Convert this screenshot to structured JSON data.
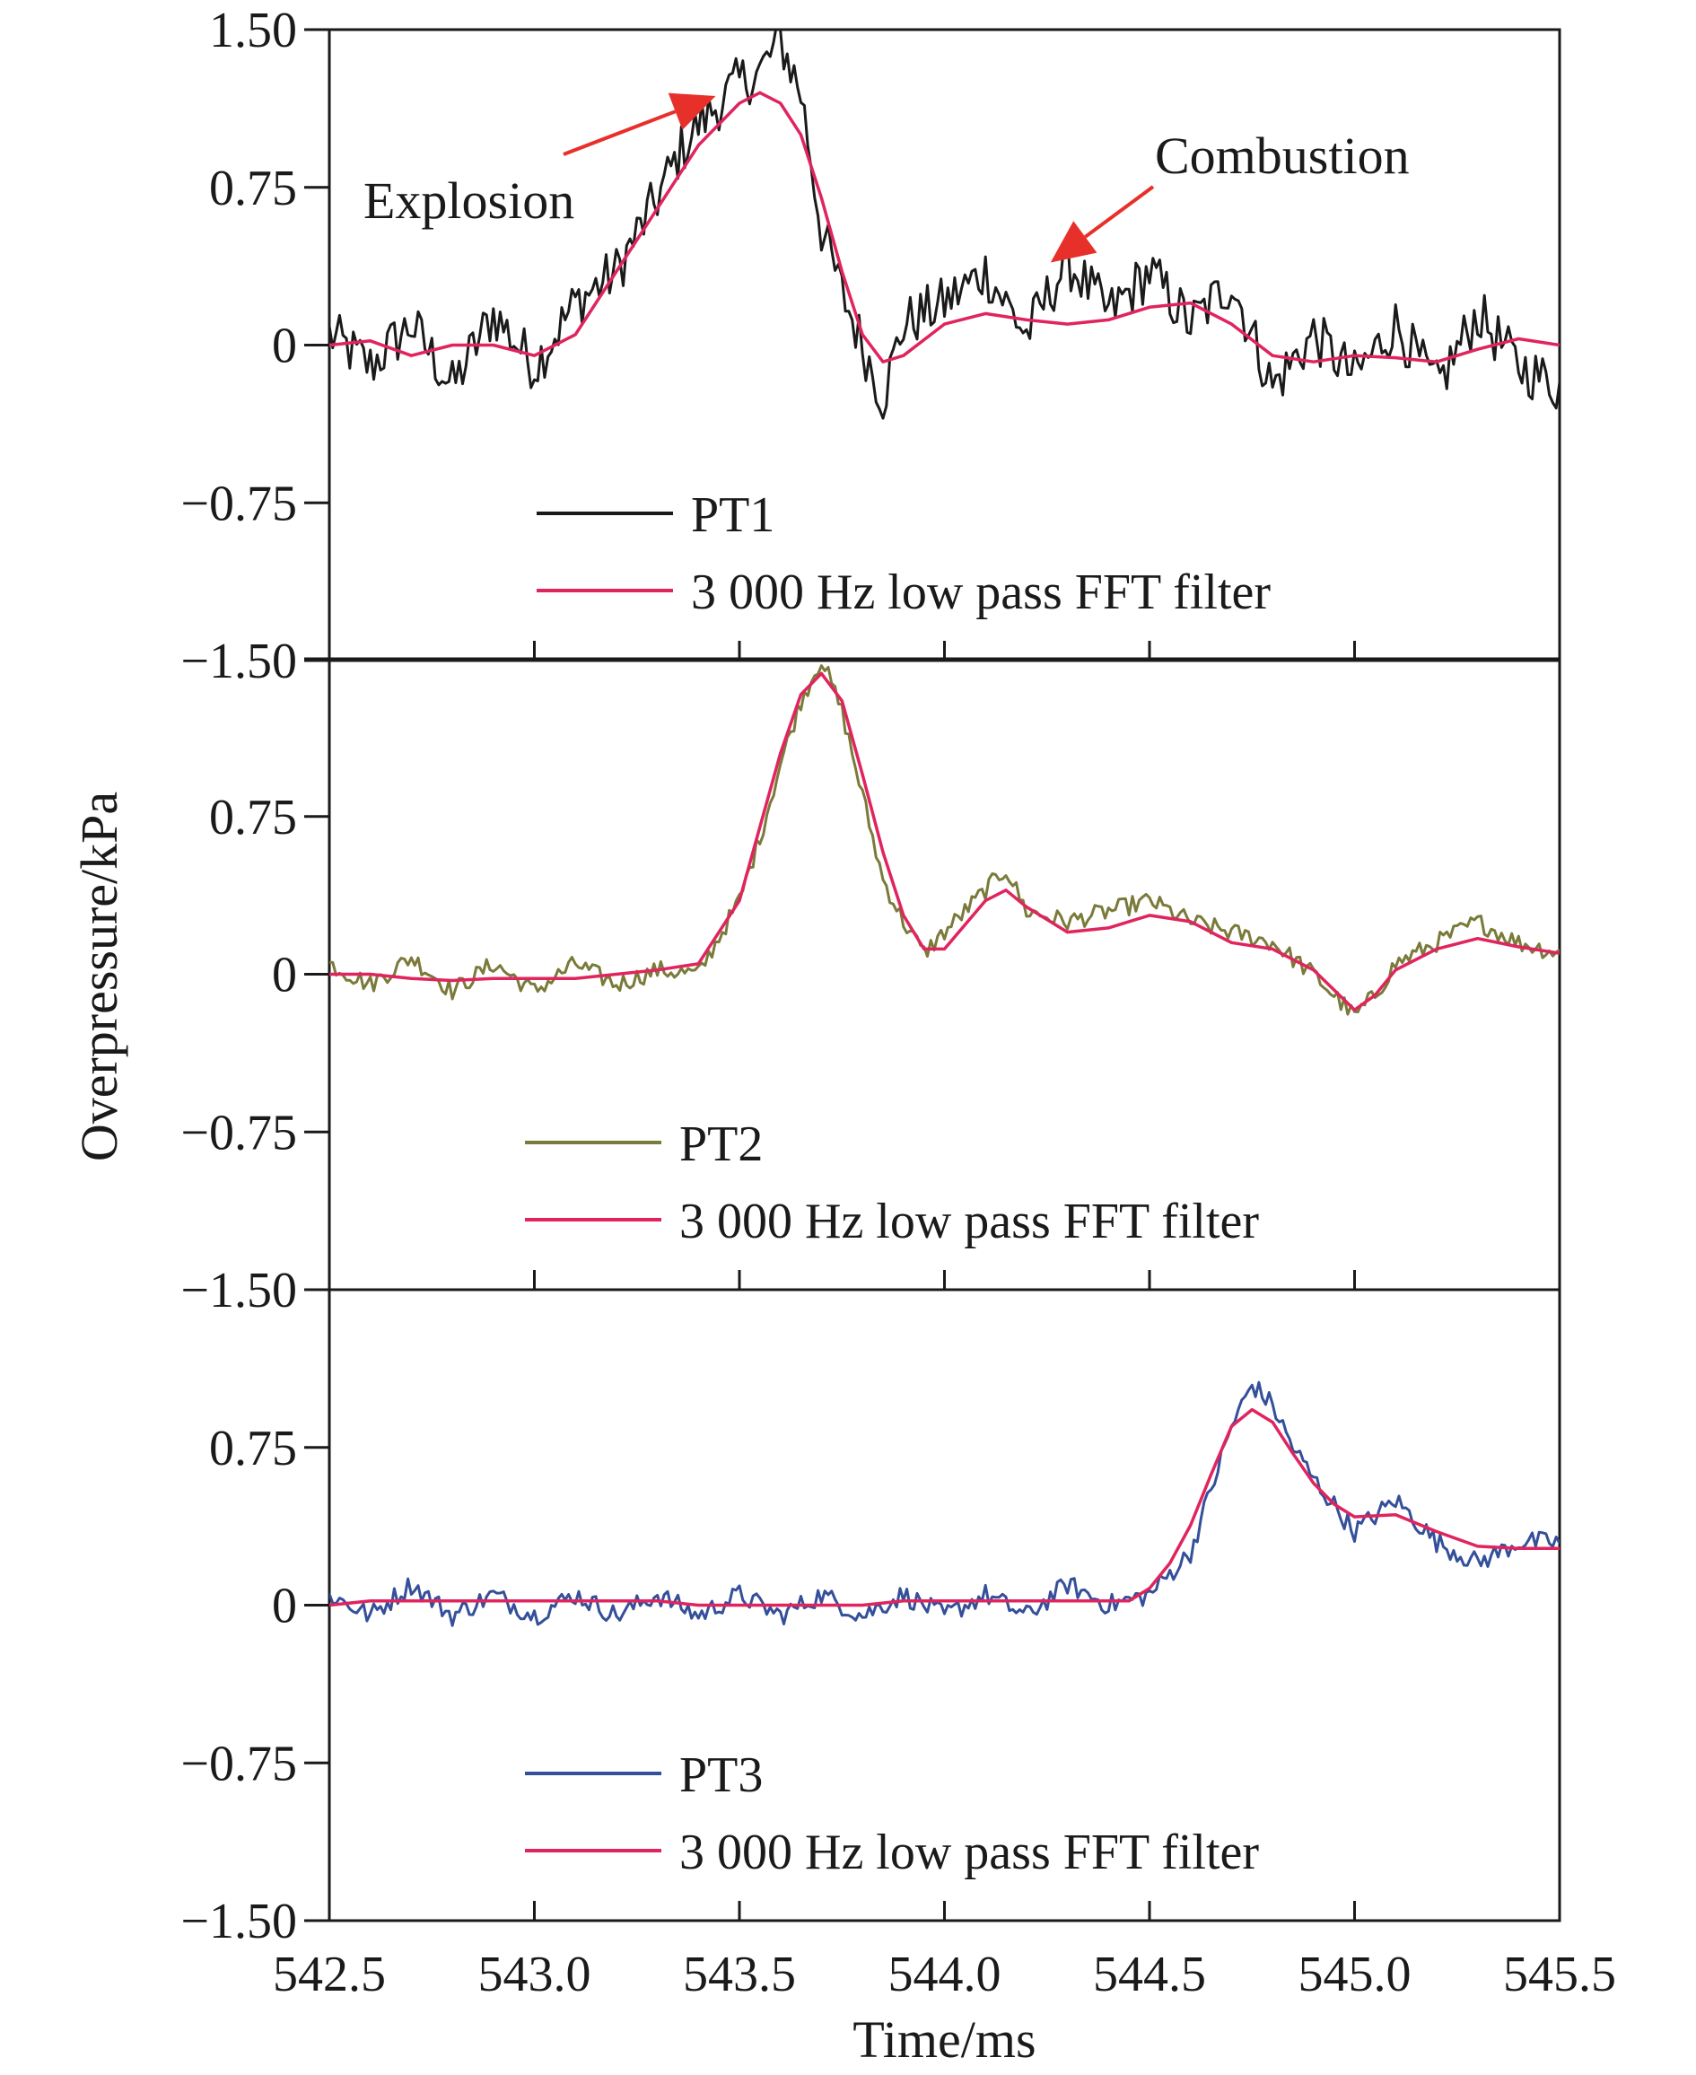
{
  "colors": {
    "pt1": "#1a1a1a",
    "pt2": "#7a7a3a",
    "pt3": "#34509a",
    "filter": "#e0245e",
    "annotation_arrow": "#e8302a",
    "axis": "#1a1a1a"
  },
  "chart_data": {
    "type": "line",
    "layout": "three vertically stacked panels sharing the x axis",
    "xlabel": "Time/ms",
    "ylabel": "Overpressure/kPa",
    "xlim": [
      542.5,
      545.5
    ],
    "ylim": [
      -1.5,
      1.5
    ],
    "x_ticks": [
      "542.5",
      "543.0",
      "543.5",
      "544.0",
      "544.5",
      "545.0",
      "545.5"
    ],
    "y_ticks": [
      "1.50",
      "0.75",
      "0",
      "−0.75",
      "−1.50"
    ],
    "grid": false,
    "legend_position": "lower-left",
    "panels": [
      {
        "id": "pt1",
        "series": [
          {
            "name": "PT1",
            "color_key": "pt1",
            "x": [
              542.5,
              542.6,
              542.7,
              542.8,
              542.9,
              543.0,
              543.1,
              543.2,
              543.3,
              543.35,
              543.4,
              543.45,
              543.5,
              543.55,
              543.6,
              543.65,
              543.7,
              543.75,
              543.8,
              543.85,
              543.9,
              544.0,
              544.1,
              544.2,
              544.3,
              544.4,
              544.5,
              544.6,
              544.7,
              544.8,
              544.9,
              545.0,
              545.1,
              545.2,
              545.3,
              545.4,
              545.5
            ],
            "y": [
              0.05,
              -0.1,
              0.1,
              -0.2,
              0.15,
              -0.1,
              0.2,
              0.35,
              0.7,
              0.9,
              1.05,
              1.15,
              1.25,
              1.3,
              1.45,
              1.2,
              0.55,
              0.25,
              0.0,
              -0.25,
              0.1,
              0.2,
              0.35,
              0.05,
              0.4,
              0.15,
              0.35,
              0.1,
              0.3,
              -0.2,
              0.05,
              -0.15,
              0.1,
              -0.2,
              0.15,
              -0.1,
              -0.2
            ]
          },
          {
            "name": "3 000 Hz low pass FFT filter",
            "color_key": "filter",
            "x": [
              542.5,
              542.6,
              542.7,
              542.8,
              542.9,
              543.0,
              543.1,
              543.2,
              543.3,
              543.4,
              543.5,
              543.55,
              543.6,
              543.65,
              543.7,
              543.75,
              543.8,
              543.85,
              543.9,
              544.0,
              544.1,
              544.2,
              544.3,
              544.4,
              544.5,
              544.6,
              544.7,
              544.8,
              544.9,
              545.0,
              545.1,
              545.2,
              545.3,
              545.4,
              545.5
            ],
            "y": [
              0.0,
              0.02,
              -0.05,
              0.0,
              0.0,
              -0.05,
              0.05,
              0.35,
              0.65,
              0.95,
              1.15,
              1.2,
              1.15,
              1.0,
              0.7,
              0.35,
              0.05,
              -0.08,
              -0.05,
              0.1,
              0.15,
              0.12,
              0.1,
              0.12,
              0.18,
              0.2,
              0.1,
              -0.05,
              -0.08,
              -0.05,
              -0.06,
              -0.08,
              -0.02,
              0.03,
              0.0
            ]
          }
        ],
        "annotations": [
          {
            "text": "Explosion",
            "points_to": [
              543.42,
              1.15
            ]
          },
          {
            "text": "Combustion",
            "points_to": [
              544.25,
              0.35
            ]
          }
        ]
      },
      {
        "id": "pt2",
        "series": [
          {
            "name": "PT2",
            "color_key": "pt2",
            "x": [
              542.5,
              542.6,
              542.7,
              542.8,
              542.9,
              543.0,
              543.1,
              543.2,
              543.3,
              543.4,
              543.5,
              543.55,
              543.6,
              543.65,
              543.7,
              543.75,
              543.8,
              543.85,
              543.9,
              543.95,
              544.0,
              544.1,
              544.15,
              544.2,
              544.3,
              544.4,
              544.5,
              544.6,
              544.7,
              544.8,
              544.9,
              545.0,
              545.05,
              545.1,
              545.2,
              545.3,
              545.4,
              545.5
            ],
            "y": [
              0.05,
              -0.05,
              0.08,
              -0.08,
              0.05,
              -0.08,
              0.05,
              -0.05,
              0.02,
              0.0,
              0.35,
              0.65,
              1.0,
              1.3,
              1.5,
              1.25,
              0.85,
              0.45,
              0.25,
              0.1,
              0.2,
              0.4,
              0.5,
              0.3,
              0.25,
              0.3,
              0.35,
              0.25,
              0.2,
              0.15,
              0.0,
              -0.2,
              -0.1,
              0.05,
              0.15,
              0.25,
              0.15,
              0.1
            ]
          },
          {
            "name": "3 000 Hz low pass FFT filter",
            "color_key": "filter",
            "x": [
              542.5,
              542.6,
              542.7,
              542.8,
              542.9,
              543.0,
              543.1,
              543.2,
              543.3,
              543.4,
              543.5,
              543.55,
              543.6,
              543.65,
              543.7,
              543.75,
              543.8,
              543.85,
              543.9,
              543.95,
              544.0,
              544.1,
              544.15,
              544.2,
              544.3,
              544.4,
              544.5,
              544.6,
              544.7,
              544.8,
              544.9,
              545.0,
              545.05,
              545.1,
              545.2,
              545.3,
              545.4,
              545.5
            ],
            "y": [
              0.0,
              0.0,
              -0.02,
              -0.03,
              -0.02,
              -0.02,
              -0.02,
              0.0,
              0.02,
              0.05,
              0.35,
              0.7,
              1.05,
              1.33,
              1.43,
              1.3,
              0.95,
              0.58,
              0.28,
              0.12,
              0.12,
              0.35,
              0.4,
              0.32,
              0.2,
              0.22,
              0.28,
              0.25,
              0.15,
              0.12,
              0.02,
              -0.17,
              -0.1,
              0.02,
              0.12,
              0.17,
              0.13,
              0.1
            ]
          }
        ]
      },
      {
        "id": "pt3",
        "series": [
          {
            "name": "PT3",
            "color_key": "pt3",
            "x": [
              542.5,
              542.6,
              542.7,
              542.8,
              542.9,
              543.0,
              543.1,
              543.2,
              543.3,
              543.4,
              543.5,
              543.6,
              543.7,
              543.8,
              543.9,
              544.0,
              544.1,
              544.2,
              544.3,
              544.4,
              544.5,
              544.6,
              544.65,
              544.7,
              544.75,
              544.8,
              544.85,
              544.9,
              545.0,
              545.1,
              545.2,
              545.3,
              545.4,
              545.5
            ],
            "y": [
              0.05,
              -0.05,
              0.1,
              -0.05,
              0.05,
              -0.05,
              0.05,
              -0.05,
              0.05,
              -0.05,
              0.05,
              -0.05,
              0.05,
              -0.05,
              0.05,
              -0.05,
              0.05,
              -0.05,
              0.1,
              0.0,
              0.05,
              0.25,
              0.55,
              0.85,
              1.05,
              0.95,
              0.75,
              0.6,
              0.35,
              0.5,
              0.3,
              0.2,
              0.3,
              0.3
            ]
          },
          {
            "name": "3 000 Hz low pass FFT filter",
            "color_key": "filter",
            "x": [
              542.5,
              542.6,
              542.7,
              542.8,
              542.9,
              543.0,
              543.1,
              543.2,
              543.3,
              543.4,
              543.5,
              543.6,
              543.7,
              543.8,
              543.9,
              544.0,
              544.1,
              544.2,
              544.3,
              544.4,
              544.45,
              544.5,
              544.55,
              544.6,
              544.65,
              544.7,
              544.75,
              544.8,
              544.85,
              544.9,
              544.95,
              545.0,
              545.1,
              545.2,
              545.3,
              545.4,
              545.5
            ],
            "y": [
              0.0,
              0.02,
              0.02,
              0.02,
              0.02,
              0.02,
              0.02,
              0.02,
              0.02,
              0.0,
              0.0,
              0.0,
              0.0,
              0.0,
              0.02,
              0.02,
              0.02,
              0.02,
              0.02,
              0.02,
              0.02,
              0.08,
              0.2,
              0.38,
              0.62,
              0.85,
              0.93,
              0.87,
              0.72,
              0.58,
              0.48,
              0.42,
              0.43,
              0.35,
              0.28,
              0.27,
              0.27
            ]
          }
        ]
      }
    ]
  }
}
